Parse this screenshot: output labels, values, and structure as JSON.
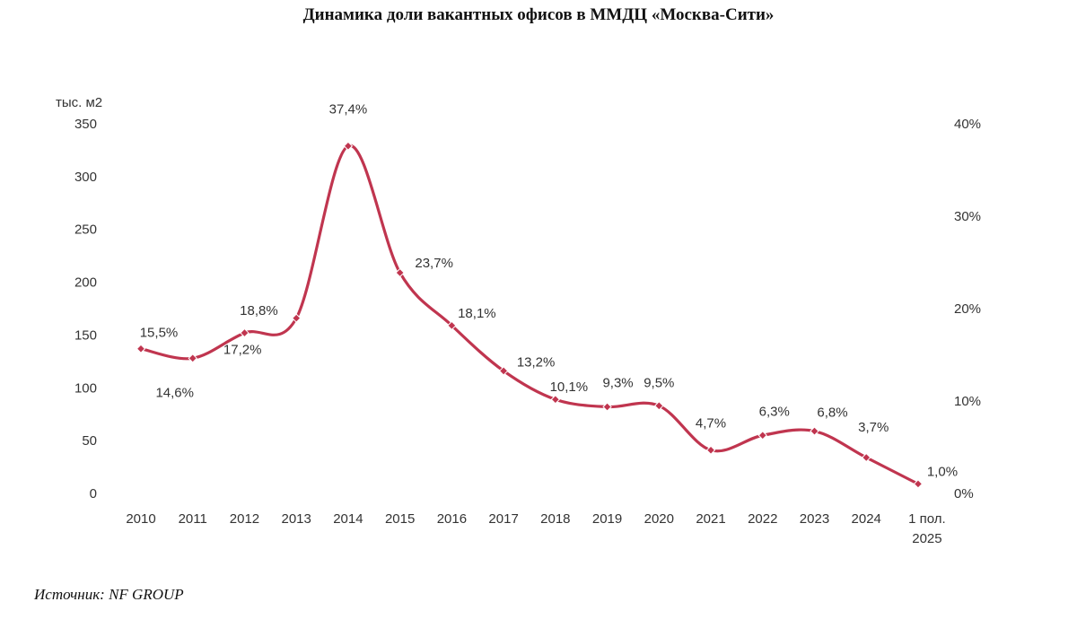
{
  "title": "Динамика доли вакантных офисов в ММДЦ «Москва-Сити»",
  "source": "Источник: NF GROUP",
  "colors": {
    "line": "#c0354f",
    "text": "#333333"
  },
  "chart_data": {
    "type": "line",
    "title": "Динамика доли вакантных офисов в ММДЦ «Москва-Сити»",
    "ylabel": "тыс. м2",
    "ylim": [
      0,
      350
    ],
    "y_ticks": [
      "0",
      "50",
      "100",
      "150",
      "200",
      "250",
      "300",
      "350"
    ],
    "y2_ticks": [
      "0%",
      "10%",
      "20%",
      "30%",
      "40%"
    ],
    "y2lim": [
      0,
      40
    ],
    "categories": [
      "2010",
      "2011",
      "2012",
      "2013",
      "2014",
      "2015",
      "2016",
      "2017",
      "2018",
      "2019",
      "2020",
      "2021",
      "2022",
      "2023",
      "2024",
      "1 пол. 2025"
    ],
    "values": [
      137,
      128,
      152,
      166,
      329,
      209,
      159,
      116,
      89,
      82,
      83,
      41,
      55,
      59,
      34,
      9
    ],
    "labels": [
      "15,5%",
      "14,6%",
      "18,8%",
      "17,2%",
      "37,4%",
      "23,7%",
      "18,1%",
      "13,2%",
      "10,1%",
      "9,3%",
      "9,5%",
      "4,7%",
      "6,3%",
      "6,8%",
      "3,7%",
      "1,0%"
    ],
    "grid": false,
    "legend": "none"
  }
}
